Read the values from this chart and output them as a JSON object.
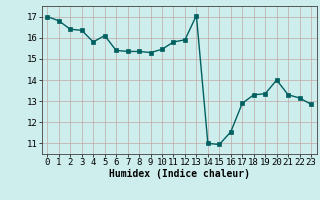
{
  "x": [
    0,
    1,
    2,
    3,
    4,
    5,
    6,
    7,
    8,
    9,
    10,
    11,
    12,
    13,
    14,
    15,
    16,
    17,
    18,
    19,
    20,
    21,
    22,
    23
  ],
  "y": [
    17.0,
    16.8,
    16.4,
    16.35,
    15.8,
    16.1,
    15.4,
    15.35,
    15.35,
    15.3,
    15.45,
    15.8,
    15.9,
    17.05,
    11.0,
    10.95,
    11.55,
    12.9,
    13.3,
    13.35,
    14.0,
    13.3,
    13.15,
    12.85
  ],
  "line_color": "#006060",
  "marker": "s",
  "markersize": 2.5,
  "linewidth": 1.0,
  "bg_color": "#cdeeed",
  "grid_color": "#c0a8a8",
  "xlabel": "Humidex (Indice chaleur)",
  "xlabel_fontsize": 7,
  "xtick_labels": [
    "0",
    "1",
    "2",
    "3",
    "4",
    "5",
    "6",
    "7",
    "8",
    "9",
    "10",
    "11",
    "12",
    "13",
    "14",
    "15",
    "16",
    "17",
    "18",
    "19",
    "20",
    "21",
    "22",
    "23"
  ],
  "xticks": [
    0,
    1,
    2,
    3,
    4,
    5,
    6,
    7,
    8,
    9,
    10,
    11,
    12,
    13,
    14,
    15,
    16,
    17,
    18,
    19,
    20,
    21,
    22,
    23
  ],
  "yticks": [
    11,
    12,
    13,
    14,
    15,
    16,
    17
  ],
  "ylim": [
    10.5,
    17.5
  ],
  "xlim": [
    -0.5,
    23.5
  ],
  "tick_fontsize": 6.5
}
